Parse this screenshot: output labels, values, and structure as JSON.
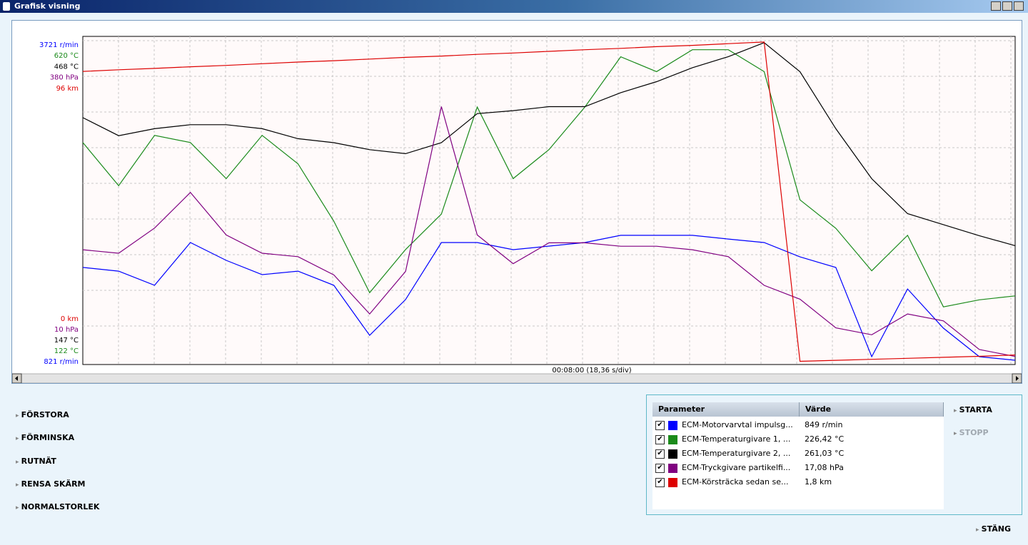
{
  "window": {
    "title": "Grafisk visning"
  },
  "chart_data": {
    "type": "line",
    "x_label": "00:08:00 (18,36 s/div)",
    "grid": true,
    "series": [
      {
        "name": "ECM-Motorvarvtal impulsg...",
        "color": "#0000ff",
        "ylim": [
          821,
          3721
        ],
        "yticks": [
          {
            "value": 821,
            "label": "821 r/min"
          },
          {
            "value": 3721,
            "label": "3721 r/min"
          }
        ],
        "values": [
          1672,
          1639,
          1511,
          1897,
          1736,
          1607,
          1639,
          1511,
          1059,
          1382,
          1897,
          1897,
          1833,
          1865,
          1897,
          1962,
          1962,
          1962,
          1929,
          1897,
          1768,
          1672,
          866,
          1478,
          1124,
          866,
          834
        ]
      },
      {
        "name": "ECM-Temperaturgivare 1, ...",
        "color": "#1a8a1a",
        "ylim": [
          122,
          620
        ],
        "yticks": [
          {
            "value": 122,
            "label": "122 °C"
          },
          {
            "value": 620,
            "label": "620 °C"
          }
        ],
        "values": [
          462,
          395,
          473,
          462,
          406,
          473,
          429,
          340,
          229,
          296,
          351,
          517,
          406,
          451,
          517,
          595,
          572,
          606,
          606,
          572,
          373,
          329,
          263,
          318,
          207,
          218,
          224
        ]
      },
      {
        "name": "ECM-Temperaturgivare 2, ...",
        "color": "#000000",
        "ylim": [
          147,
          468
        ],
        "yticks": [
          {
            "value": 147,
            "label": "147 °C"
          },
          {
            "value": 468,
            "label": "468 °C"
          }
        ],
        "values": [
          391,
          373,
          380,
          384,
          384,
          380,
          370,
          366,
          359,
          355,
          366,
          395,
          398,
          402,
          402,
          416,
          427,
          441,
          452,
          466,
          437,
          380,
          330,
          295,
          284,
          273,
          263
        ]
      },
      {
        "name": "ECM-Tryckgivare partikelfi...",
        "color": "#800080",
        "ylim": [
          10,
          380
        ],
        "yticks": [
          {
            "value": 10,
            "label": "10 hPa"
          },
          {
            "value": 380,
            "label": "380 hPa"
          }
        ],
        "values": [
          139,
          135,
          164,
          205,
          156,
          135,
          131,
          110,
          65,
          114,
          304,
          156,
          123,
          147,
          147,
          143,
          143,
          139,
          131,
          98,
          82,
          49,
          41,
          65,
          57,
          24,
          16
        ]
      },
      {
        "name": "ECM-Körsträcka sedan se...",
        "color": "#dd0000",
        "ylim": [
          0,
          96
        ],
        "yticks": [
          {
            "value": 0,
            "label": "0 km"
          },
          {
            "value": 96,
            "label": "96 km"
          }
        ],
        "values": [
          86.8,
          87.3,
          87.7,
          88.2,
          88.6,
          89.1,
          89.6,
          90.0,
          90.5,
          91.0,
          91.4,
          91.9,
          92.3,
          92.8,
          93.3,
          93.7,
          94.2,
          94.6,
          95.1,
          95.6,
          0.1,
          0.4,
          0.7,
          1.0,
          1.3,
          1.6,
          2.0
        ]
      }
    ]
  },
  "buttons": [
    "FÖRSTORA",
    "FÖRMINSKA",
    "RUTNÄT",
    "RENSA SKÄRM",
    "NORMALSTORLEK"
  ],
  "table": {
    "headers": [
      "Parameter",
      "Värde"
    ],
    "rows": [
      {
        "checked": true,
        "value": "849 r/min"
      },
      {
        "checked": true,
        "value": "226,42 °C"
      },
      {
        "checked": true,
        "value": "261,03 °C"
      },
      {
        "checked": true,
        "value": "17,08 hPa"
      },
      {
        "checked": true,
        "value": "1,8 km"
      }
    ]
  },
  "actions": {
    "start": "STARTA",
    "stop": "STOPP",
    "close": "STÄNG"
  }
}
